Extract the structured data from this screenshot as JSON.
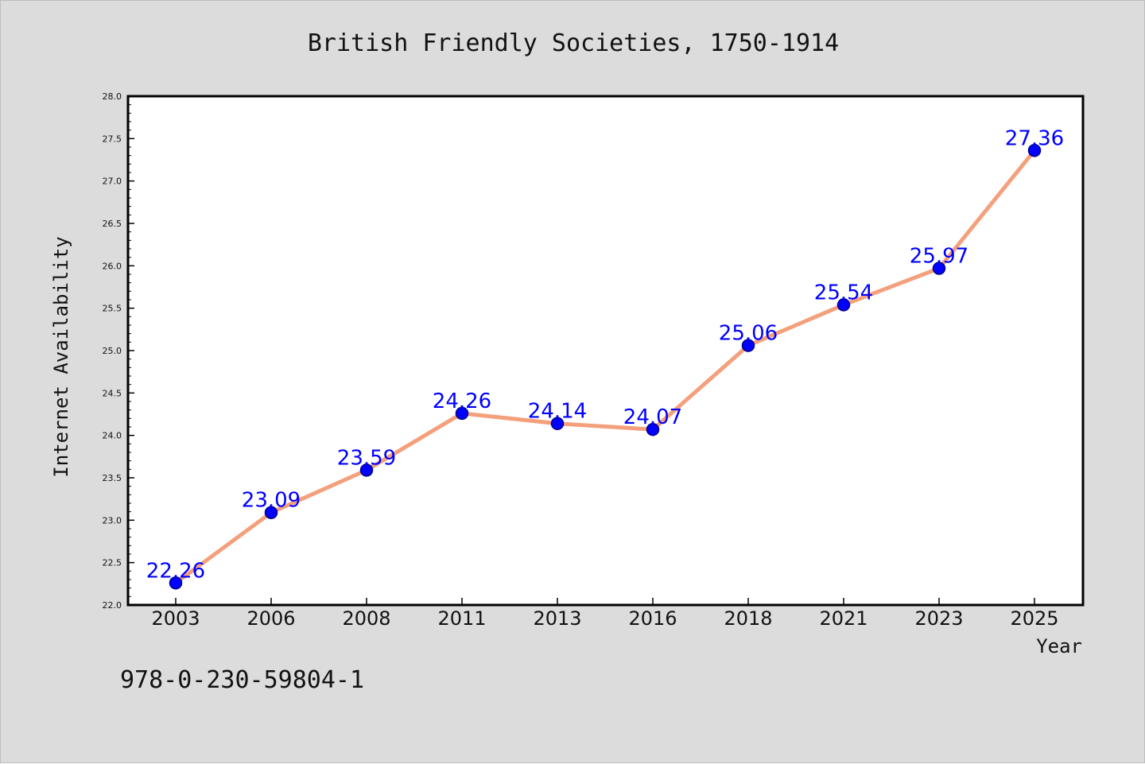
{
  "chart_data": {
    "type": "line",
    "title": "British Friendly Societies, 1750-1914",
    "xlabel": "Year",
    "ylabel": "Internet Availability",
    "categories": [
      "2003",
      "2006",
      "2008",
      "2011",
      "2013",
      "2016",
      "2018",
      "2021",
      "2023",
      "2025"
    ],
    "series": [
      {
        "values": [
          22.26,
          23.09,
          23.59,
          24.26,
          24.14,
          24.07,
          25.06,
          25.54,
          25.97,
          27.36
        ]
      }
    ],
    "value_labels": [
      "22.26",
      "23.09",
      "23.59",
      "24.26",
      "24.14",
      "24.07",
      "25.06",
      "25.54",
      "25.97",
      "27.36"
    ],
    "ylim": [
      22.0,
      28.0
    ],
    "y_ticks": [
      "22.0",
      "22.5",
      "23.0",
      "23.5",
      "24.0",
      "24.5",
      "25.0",
      "25.5",
      "26.0",
      "26.5",
      "27.0",
      "27.5",
      "28.0"
    ],
    "y_minor_step": 0.1,
    "grid": false,
    "legend": "none",
    "colors": {
      "line": "#f4a07c",
      "marker": "#0000ff",
      "marker_edge": "#00008b",
      "value_label": "#0000ff",
      "plot_background": "#ffffff",
      "figure_background": "#dcdcdc"
    }
  },
  "footnote": "978-0-230-59804-1"
}
